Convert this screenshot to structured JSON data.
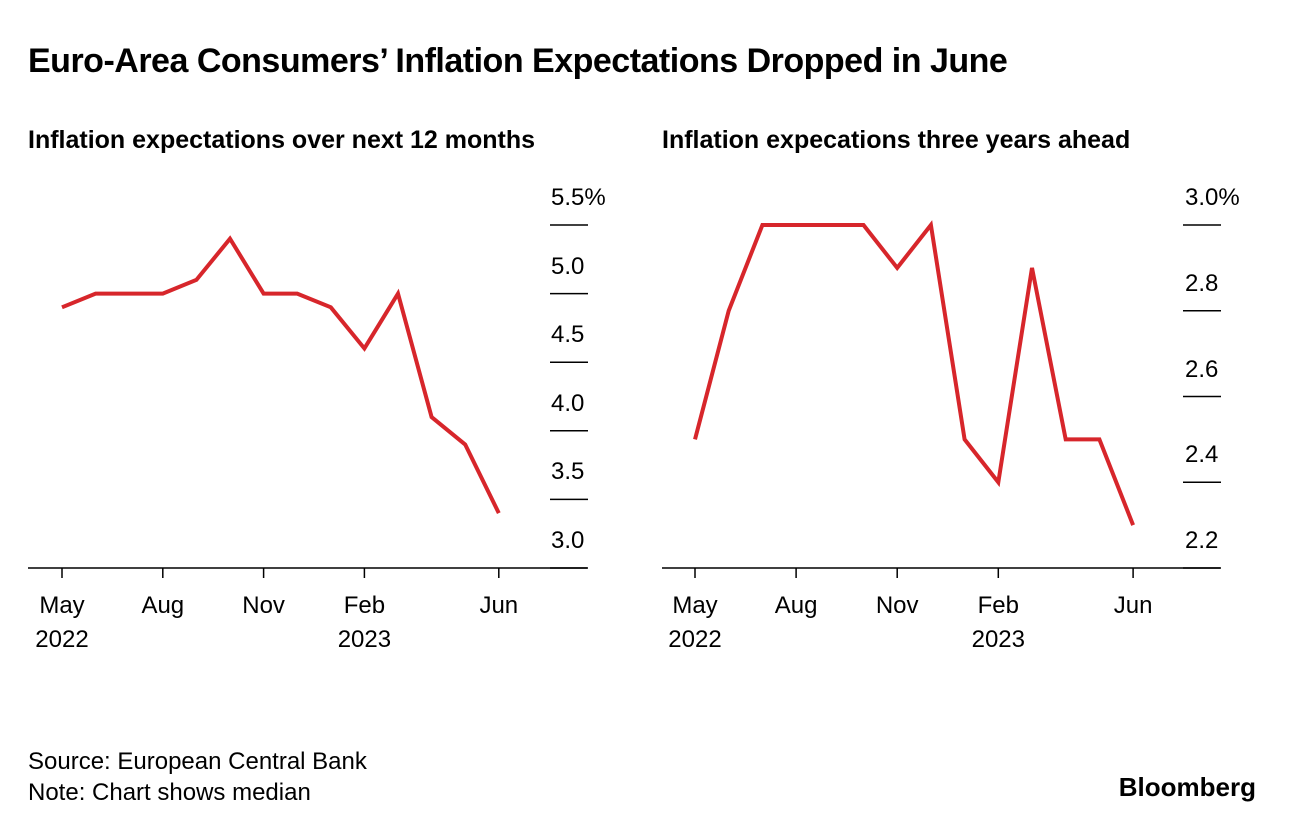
{
  "title": "Euro-Area Consumers’ Inflation Expectations Dropped in June",
  "chart_data": [
    {
      "type": "line",
      "title": "Inflation expectations over next 12 months",
      "categories": [
        "May 2022",
        null,
        null,
        "Aug",
        null,
        null,
        "Nov",
        null,
        null,
        "Feb 2023",
        null,
        null,
        null,
        "Jun"
      ],
      "values": [
        4.9,
        5.0,
        5.0,
        5.0,
        5.1,
        5.4,
        5.0,
        5.0,
        4.9,
        4.6,
        5.0,
        4.1,
        3.9,
        3.4
      ],
      "color": "#d7262b",
      "ylim": [
        3,
        5.5
      ],
      "yticks": [
        {
          "value": 3,
          "label": "3.0"
        },
        3.5,
        {
          "value": 4,
          "label": "4.0"
        },
        4.5,
        {
          "value": 5,
          "label": "5.0"
        },
        {
          "value": 5.5,
          "label": "5.5%"
        }
      ]
    },
    {
      "type": "line",
      "title": "Inflation expecations three years ahead",
      "categories": [
        "May 2022",
        null,
        null,
        "Aug",
        null,
        null,
        "Nov",
        null,
        null,
        "Feb 2023",
        null,
        null,
        null,
        "Jun"
      ],
      "values": [
        2.5,
        2.8,
        3.0,
        3.0,
        3.0,
        3.0,
        2.9,
        3.0,
        2.5,
        2.4,
        2.9,
        2.5,
        2.5,
        2.3
      ],
      "color": "#d7262b",
      "ylim": [
        2.2,
        3.0
      ],
      "yticks": [
        2.2,
        2.4,
        2.6,
        2.8,
        {
          "value": 3.0,
          "label": "3.0%"
        }
      ]
    }
  ],
  "source": "Source: European Central Bank",
  "note": "Note: Chart shows median",
  "brand": "Bloomberg"
}
